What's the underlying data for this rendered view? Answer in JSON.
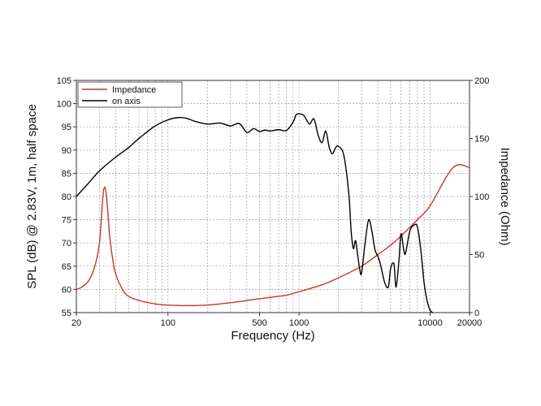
{
  "chart_data": {
    "type": "line",
    "xlabel": "Frequency (Hz)",
    "ylabel": "SPL (dB) @ 2.83V, 1m, half space",
    "y2label": "Impedance (Ohm)",
    "xscale": "log",
    "xlim": [
      20,
      20000
    ],
    "ylim": [
      55,
      105
    ],
    "y2lim": [
      0,
      200
    ],
    "grid": true,
    "legend_position": "top-left",
    "x_ticks": [
      "20",
      "100",
      "500",
      "1000",
      "10000",
      "20000"
    ],
    "y_ticks": [
      "55",
      "60",
      "65",
      "70",
      "75",
      "80",
      "85",
      "90",
      "95",
      "100",
      "105"
    ],
    "y2_ticks": [
      "0",
      "50",
      "100",
      "150",
      "200"
    ],
    "series": [
      {
        "name": "Impedance",
        "axis": "right",
        "color": "#c0392b",
        "x": [
          20,
          22,
          25,
          28,
          30,
          31,
          32,
          33,
          34,
          35,
          36,
          38,
          40,
          45,
          50,
          60,
          80,
          100,
          120,
          150,
          200,
          300,
          500,
          800,
          1000,
          1500,
          2000,
          3000,
          4000,
          5000,
          6000,
          8000,
          10000,
          15000,
          20000
        ],
        "y": [
          20,
          22,
          28,
          42,
          60,
          80,
          102,
          108,
          100,
          82,
          65,
          45,
          33,
          20,
          14,
          10.5,
          7.5,
          6.5,
          6.2,
          6.1,
          6.5,
          8.5,
          12,
          15,
          18,
          24,
          30,
          40,
          50,
          58,
          66,
          80,
          92,
          125,
          125
        ]
      },
      {
        "name": "on axis",
        "axis": "left",
        "color": "#000000",
        "x": [
          20,
          25,
          30,
          40,
          50,
          60,
          80,
          100,
          120,
          140,
          160,
          200,
          250,
          300,
          350,
          400,
          450,
          500,
          550,
          600,
          700,
          800,
          900,
          950,
          1000,
          1050,
          1100,
          1200,
          1300,
          1400,
          1500,
          1600,
          1700,
          1800,
          1900,
          2000,
          2200,
          2400,
          2500,
          2600,
          2700,
          2800,
          2900,
          3000,
          3200,
          3400,
          3600,
          3800,
          4000,
          4200,
          4500,
          4800,
          5000,
          5300,
          5500,
          5800,
          6000,
          6300,
          6500,
          7000,
          7500,
          8000,
          8500,
          9000,
          9500,
          10000,
          10500
        ],
        "y": [
          80,
          83,
          85.5,
          88.5,
          90.5,
          92.5,
          95.2,
          96.5,
          97,
          96.8,
          96.2,
          95.6,
          95.8,
          95.2,
          95.7,
          93.8,
          94.6,
          94,
          94.3,
          94.1,
          94.4,
          94.2,
          96,
          97.6,
          97.8,
          97.7,
          97.3,
          95.6,
          96.7,
          93.2,
          91.6,
          94.1,
          90.6,
          89.2,
          90.5,
          90.8,
          88.8,
          80.5,
          72.5,
          68.8,
          70.5,
          67.5,
          64.5,
          63.5,
          70.2,
          75,
          72.5,
          68.5,
          67.1,
          65.2,
          61.5,
          60.5,
          64.5,
          65.5,
          60.5,
          66.5,
          72,
          68.5,
          67.8,
          72.5,
          73.8,
          73.5,
          68.5,
          61.5,
          57.5,
          55.5,
          55
        ]
      }
    ]
  }
}
